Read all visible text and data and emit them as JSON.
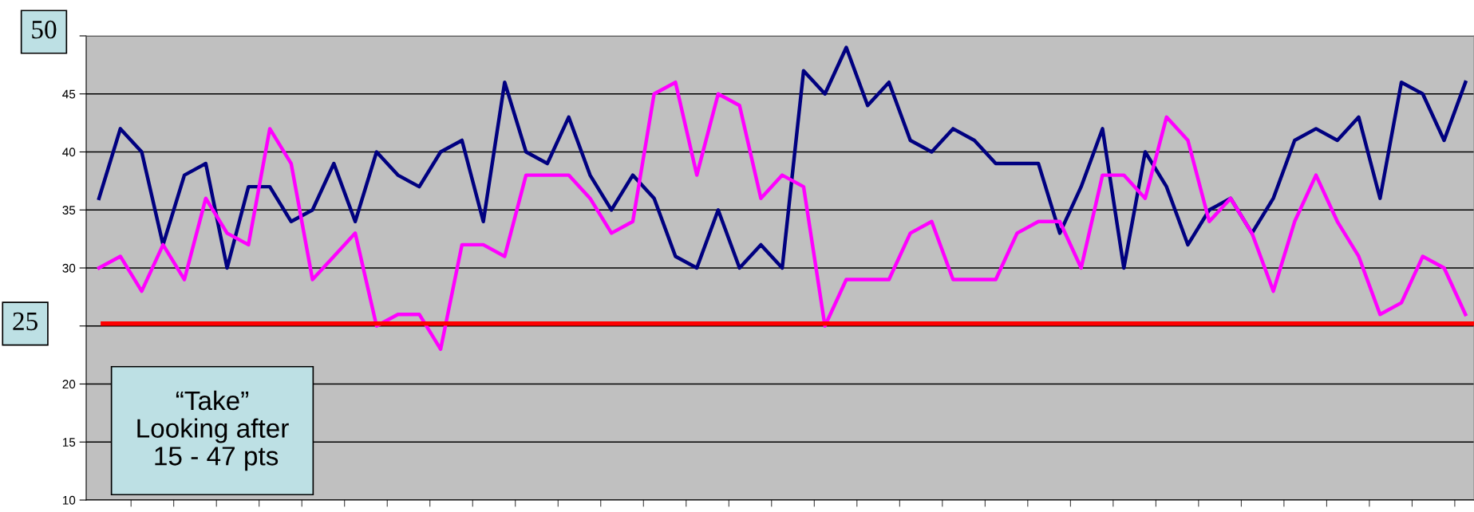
{
  "chart_data": {
    "type": "line",
    "categories": [
      null,
      null,
      null,
      null,
      null,
      null,
      null,
      null,
      null,
      null,
      null,
      null,
      null,
      null,
      null,
      null,
      null,
      null,
      null,
      null,
      null,
      null,
      null,
      null,
      null,
      null,
      null,
      null,
      null,
      null,
      null,
      null,
      null,
      null,
      null,
      null,
      null,
      null,
      null,
      null,
      null,
      null,
      null,
      null,
      null,
      null,
      null,
      null,
      null,
      null,
      null,
      null,
      null,
      null,
      null,
      null,
      null,
      null,
      null,
      null,
      null,
      null,
      null,
      null,
      null
    ],
    "series": [
      {
        "color": "#000080",
        "values": [
          36,
          42,
          40,
          32,
          38,
          39,
          30,
          37,
          37,
          34,
          35,
          39,
          34,
          40,
          38,
          37,
          40,
          41,
          34,
          46,
          40,
          39,
          43,
          38,
          35,
          38,
          36,
          31,
          30,
          35,
          30,
          32,
          30,
          47,
          45,
          49,
          44,
          46,
          41,
          40,
          42,
          41,
          39,
          39,
          39,
          33,
          37,
          42,
          30,
          40,
          37,
          32,
          35,
          36,
          33,
          36,
          41,
          42,
          41,
          43,
          36,
          46,
          45,
          41,
          46
        ]
      },
      {
        "color": "#ff00ff",
        "values": [
          30,
          31,
          28,
          32,
          29,
          36,
          33,
          32,
          42,
          39,
          29,
          31,
          33,
          25,
          26,
          26,
          23,
          32,
          32,
          31,
          38,
          38,
          38,
          36,
          33,
          34,
          45,
          46,
          38,
          45,
          44,
          36,
          38,
          37,
          25,
          29,
          29,
          29,
          33,
          34,
          29,
          29,
          29,
          33,
          34,
          34,
          30,
          38,
          38,
          36,
          43,
          41,
          34,
          36,
          33,
          28,
          34,
          38,
          34,
          31,
          26,
          27,
          31,
          30,
          26
        ]
      }
    ],
    "ylim": [
      10,
      50
    ],
    "yticks": [
      10,
      15,
      20,
      {
        "value": 25,
        "label": null
      },
      30,
      35,
      40,
      45,
      {
        "value": 50,
        "label": null
      }
    ],
    "grid": "y",
    "ref_lines": [
      {
        "axis": "y",
        "value": 25.2,
        "label": "25",
        "color": "#ff0000"
      }
    ],
    "annotations": [
      "50",
      "“Take”\nLooking after\n 15 - 47 pts"
    ]
  }
}
